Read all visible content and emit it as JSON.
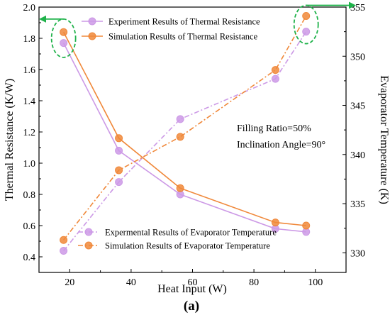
{
  "chart_data": {
    "type": "line",
    "xlabel": "Heat Input (W)",
    "ylabel_left": "Thermal Resistance (K/W)",
    "ylabel_right": "Evaporator Temperature (K)",
    "xlim": [
      10,
      110
    ],
    "ylim_left": [
      0.3,
      2.0
    ],
    "ylim_right": [
      328,
      355
    ],
    "x_ticks": [
      "20",
      "40",
      "60",
      "80",
      "100"
    ],
    "y_left_ticks": [
      "0.4",
      "0.6",
      "0.8",
      "1.0",
      "1.2",
      "1.4",
      "1.6",
      "1.8",
      "2.0"
    ],
    "y_right_ticks": [
      "330",
      "335",
      "340",
      "345",
      "350",
      "355"
    ],
    "grid": false,
    "x": [
      18,
      36,
      56,
      87,
      97
    ],
    "series": [
      {
        "name": "Experiment Results of Thermal Resistance",
        "axis": "left",
        "style": "solid",
        "color": "#cc99e6",
        "values": [
          1.77,
          1.08,
          0.8,
          0.58,
          0.56
        ]
      },
      {
        "name": "Simulation Results of Thermal Resistance",
        "axis": "left",
        "style": "solid",
        "color": "#f0883a",
        "values": [
          1.84,
          1.16,
          0.84,
          0.62,
          0.6
        ]
      },
      {
        "name": "Expermental Results of Evaporator Temperature",
        "axis": "right",
        "style": "dashdot",
        "color": "#cc99e6",
        "values": [
          330.2,
          337.2,
          343.6,
          347.7,
          352.5
        ]
      },
      {
        "name": "Simulation Results of Evaporator Temperature",
        "axis": "right",
        "style": "dashdot",
        "color": "#f0883a",
        "values": [
          331.3,
          338.4,
          341.8,
          348.6,
          354.1
        ]
      }
    ],
    "annotation_lines": [
      "Filling Ratio=50%",
      "Inclination Angle=90°"
    ],
    "panel_label": "(a)",
    "legend_top": [
      0,
      1
    ],
    "legend_bottom": [
      2,
      3
    ],
    "highlight_colors": {
      "ellipse": "#1fb24a",
      "arrow": "#1fb24a"
    }
  }
}
